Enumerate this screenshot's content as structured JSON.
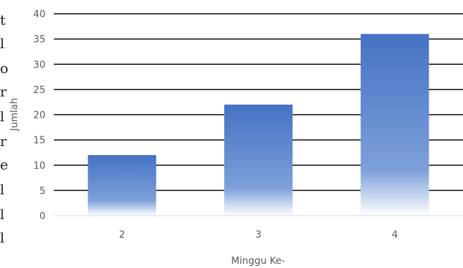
{
  "chart_data": {
    "type": "bar",
    "title": "",
    "xlabel": "Minggu Ke-",
    "ylabel": "Jumlah",
    "categories": [
      "2",
      "3",
      "4"
    ],
    "series": [
      {
        "values": [
          12,
          22,
          36
        ]
      }
    ],
    "ylim": [
      0,
      40
    ],
    "yticks": [
      0,
      5,
      10,
      15,
      20,
      25,
      30,
      35,
      40
    ],
    "grid": true,
    "legend": "none",
    "bar_color": "#4472C4"
  }
}
